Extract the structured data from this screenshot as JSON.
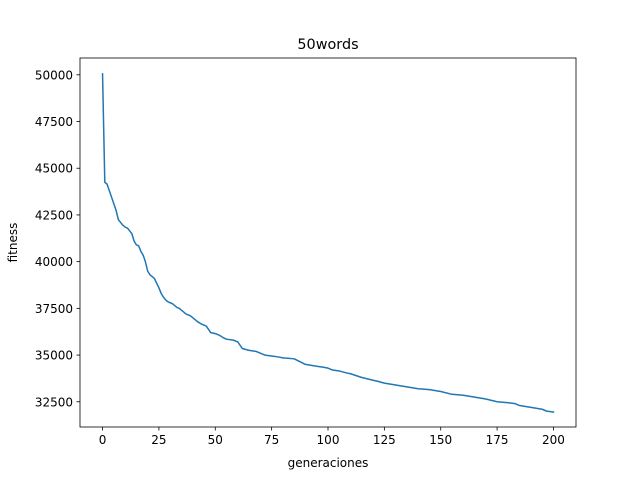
{
  "chart_data": {
    "type": "line",
    "title": "50words",
    "xlabel": "generaciones",
    "ylabel": "fitness",
    "xlim": [
      -10,
      210
    ],
    "ylim": [
      31150,
      50900
    ],
    "xticks": [
      0,
      25,
      50,
      75,
      100,
      125,
      150,
      175,
      200
    ],
    "yticks": [
      32500,
      35000,
      37500,
      40000,
      42500,
      45000,
      47500,
      50000
    ],
    "xtick_labels": [
      "0",
      "25",
      "50",
      "75",
      "100",
      "125",
      "150",
      "175",
      "200"
    ],
    "ytick_labels": [
      "32500",
      "35000",
      "37500",
      "40000",
      "42500",
      "45000",
      "47500",
      "50000"
    ],
    "grid": false,
    "legend": "none",
    "series": [
      {
        "color": "#1f77b4",
        "x": [
          0,
          1,
          2,
          3,
          4,
          5,
          6,
          7,
          8,
          9,
          10,
          11,
          12,
          13,
          14,
          15,
          16,
          17,
          18,
          19,
          20,
          21,
          22,
          23,
          24,
          25,
          26,
          27,
          28,
          29,
          30,
          31,
          32,
          33,
          34,
          35,
          36,
          37,
          38,
          39,
          40,
          42,
          44,
          46,
          48,
          50,
          52,
          54,
          55,
          58,
          60,
          62,
          65,
          68,
          70,
          72,
          75,
          78,
          80,
          85,
          90,
          95,
          98,
          100,
          102,
          105,
          108,
          110,
          115,
          120,
          122,
          125,
          130,
          135,
          140,
          145,
          150,
          155,
          160,
          165,
          170,
          175,
          180,
          183,
          185,
          190,
          195,
          197,
          200
        ],
        "y": [
          50050,
          44250,
          44150,
          43800,
          43450,
          43100,
          42750,
          42250,
          42100,
          41950,
          41850,
          41800,
          41650,
          41500,
          41100,
          40900,
          40850,
          40550,
          40350,
          40000,
          39500,
          39300,
          39200,
          39100,
          38850,
          38600,
          38300,
          38100,
          37950,
          37850,
          37800,
          37750,
          37650,
          37550,
          37500,
          37400,
          37300,
          37200,
          37150,
          37100,
          37000,
          36800,
          36650,
          36550,
          36200,
          36150,
          36050,
          35900,
          35850,
          35800,
          35700,
          35350,
          35250,
          35200,
          35100,
          35000,
          34950,
          34900,
          34850,
          34800,
          34500,
          34400,
          34350,
          34300,
          34200,
          34150,
          34050,
          34000,
          33800,
          33650,
          33600,
          33500,
          33400,
          33300,
          33200,
          33150,
          33050,
          32900,
          32850,
          32750,
          32650,
          32500,
          32450,
          32400,
          32300,
          32200,
          32100,
          32000,
          31950
        ]
      }
    ]
  }
}
